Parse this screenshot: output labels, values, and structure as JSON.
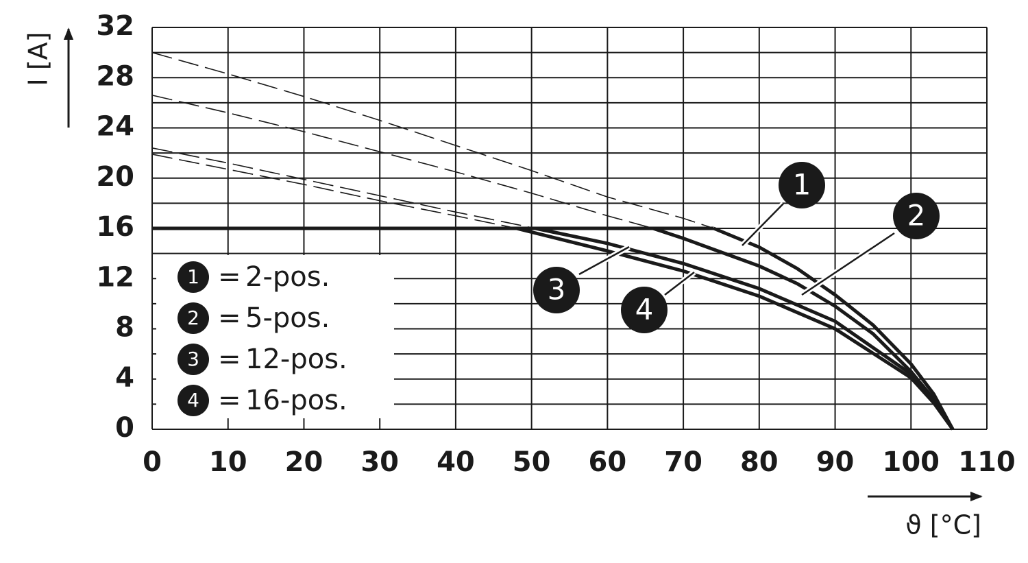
{
  "chart_data": {
    "type": "line",
    "y_label": "I [A]",
    "x_label": "ϑ [°C]",
    "xlim": [
      0,
      110
    ],
    "xticks": [
      0,
      10,
      20,
      30,
      40,
      50,
      60,
      70,
      80,
      90,
      100,
      110
    ],
    "ylim": [
      0,
      32
    ],
    "yticks": [
      0,
      4,
      8,
      12,
      16,
      20,
      24,
      28,
      32
    ],
    "y_minor_ticks": [
      2,
      6,
      10,
      14,
      18,
      22,
      26,
      30
    ],
    "grid": true,
    "color": "#1a1a1a",
    "current_limit": 16,
    "legend_separator": "=",
    "series": [
      {
        "name": "2-pos.",
        "marker": "1",
        "x": [
          0,
          10,
          20,
          30,
          40,
          50,
          60,
          70,
          74,
          80,
          85,
          90,
          95,
          100,
          103,
          105.5
        ],
        "values": [
          30,
          28.3,
          26.5,
          24.6,
          22.6,
          20.6,
          18.5,
          16.8,
          16,
          14.5,
          12.8,
          10.7,
          8.3,
          5.2,
          2.8,
          0
        ]
      },
      {
        "name": "5-pos.",
        "marker": "2",
        "x": [
          0,
          10,
          20,
          30,
          40,
          50,
          60,
          66,
          70,
          80,
          85,
          90,
          95,
          100,
          103,
          105.5
        ],
        "values": [
          26.6,
          25.2,
          23.7,
          22.1,
          20.5,
          18.8,
          17,
          16,
          15.2,
          13,
          11.6,
          9.8,
          7.6,
          4.6,
          2.4,
          0
        ]
      },
      {
        "name": "12-pos.",
        "marker": "3",
        "x": [
          0,
          10,
          20,
          30,
          40,
          50.5,
          60,
          70,
          80,
          90,
          100,
          103,
          105.5
        ],
        "values": [
          22.4,
          21.2,
          19.9,
          18.6,
          17.3,
          16,
          14.8,
          13.2,
          11.2,
          8.6,
          4.4,
          2.3,
          0
        ]
      },
      {
        "name": "16-pos.",
        "marker": "4",
        "x": [
          0,
          10,
          20,
          30,
          40,
          48,
          60,
          70,
          80,
          90,
          100,
          103,
          105.5
        ],
        "values": [
          21.9,
          20.7,
          19.5,
          18.2,
          17,
          16,
          14.2,
          12.6,
          10.6,
          8,
          4.1,
          2.1,
          0
        ]
      }
    ]
  }
}
